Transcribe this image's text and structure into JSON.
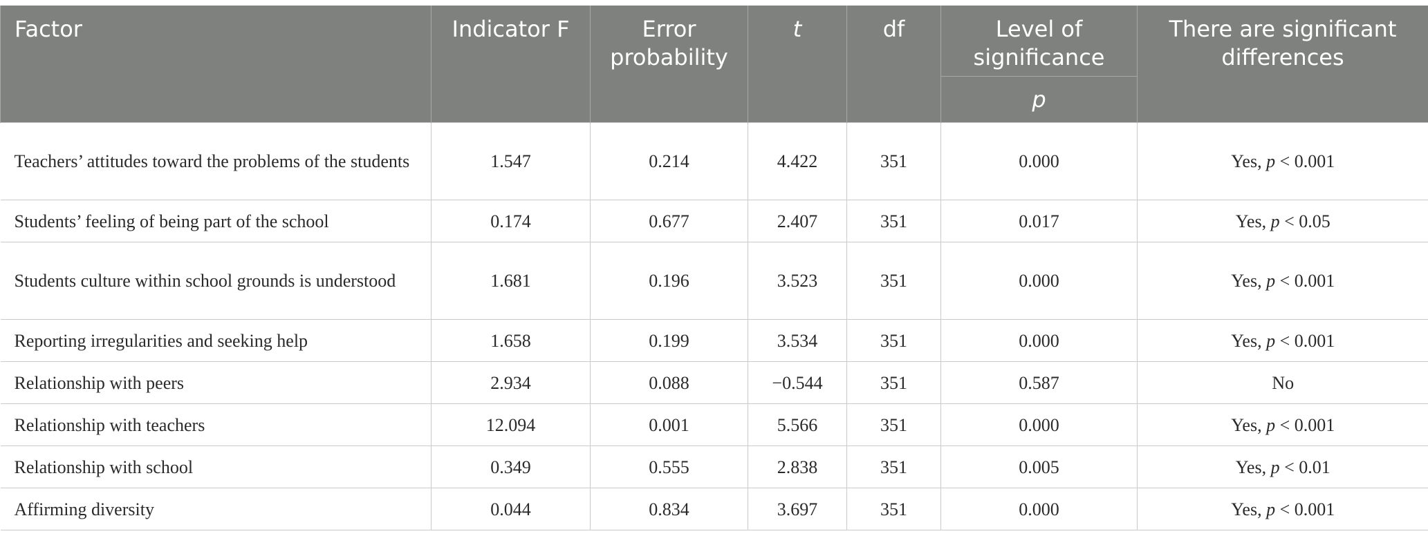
{
  "table": {
    "headers": {
      "factor": "Factor",
      "indicator_f": "Indicator F",
      "error_probability": "Error probability",
      "t": "t",
      "df": "df",
      "level_of_significance": "Level of significance",
      "p": "p",
      "significant_differences": "There are significant differences"
    },
    "rows": [
      {
        "factor": "Teachers’ attitudes toward the problems of the students",
        "indicator_f": "1.547",
        "error_probability": "0.214",
        "t": "4.422",
        "df": "351",
        "p": "0.000",
        "sig_prefix": "Yes, ",
        "sig_p": "p",
        "sig_value": " < 0.001"
      },
      {
        "factor": "Students’ feeling of being part of the school",
        "indicator_f": "0.174",
        "error_probability": "0.677",
        "t": "2.407",
        "df": "351",
        "p": "0.017",
        "sig_prefix": "Yes, ",
        "sig_p": "p",
        "sig_value": " < 0.05"
      },
      {
        "factor": "Students culture within school grounds is understood",
        "indicator_f": "1.681",
        "error_probability": "0.196",
        "t": "3.523",
        "df": "351",
        "p": "0.000",
        "sig_prefix": "Yes, ",
        "sig_p": "p",
        "sig_value": " < 0.001"
      },
      {
        "factor": "Reporting irregularities and seeking help",
        "indicator_f": "1.658",
        "error_probability": "0.199",
        "t": "3.534",
        "df": "351",
        "p": "0.000",
        "sig_prefix": "Yes, ",
        "sig_p": "p",
        "sig_value": " < 0.001"
      },
      {
        "factor": "Relationship with peers",
        "indicator_f": "2.934",
        "error_probability": "0.088",
        "t": "−0.544",
        "df": "351",
        "p": "0.587",
        "sig_prefix": "No",
        "sig_p": "",
        "sig_value": ""
      },
      {
        "factor": "Relationship with teachers",
        "indicator_f": "12.094",
        "error_probability": "0.001",
        "t": "5.566",
        "df": "351",
        "p": "0.000",
        "sig_prefix": "Yes, ",
        "sig_p": "p",
        "sig_value": " < 0.001"
      },
      {
        "factor": "Relationship with school",
        "indicator_f": "0.349",
        "error_probability": "0.555",
        "t": "2.838",
        "df": "351",
        "p": "0.005",
        "sig_prefix": "Yes, ",
        "sig_p": "p",
        "sig_value": " < 0.01"
      },
      {
        "factor": "Affirming diversity",
        "indicator_f": "0.044",
        "error_probability": "0.834",
        "t": "3.697",
        "df": "351",
        "p": "0.000",
        "sig_prefix": "Yes, ",
        "sig_p": "p",
        "sig_value": " < 0.001"
      }
    ]
  }
}
